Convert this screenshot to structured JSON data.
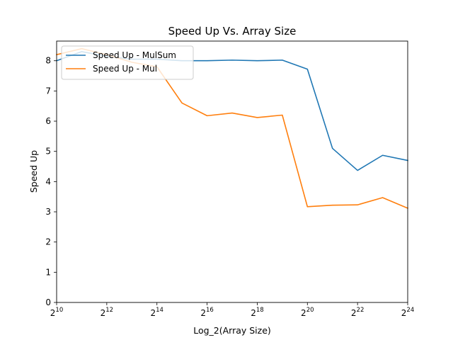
{
  "chart_data": {
    "type": "line",
    "title": "Speed Up Vs. Array Size",
    "xlabel": "Log_2(Array Size)",
    "ylabel": "Speed Up",
    "x_scale": "log2",
    "x": [
      10,
      11,
      12,
      13,
      14,
      15,
      16,
      17,
      18,
      19,
      20,
      21,
      22,
      23,
      24
    ],
    "xlim": [
      10,
      24
    ],
    "ylim": [
      0,
      8.65
    ],
    "x_ticks": [
      {
        "value": 10,
        "base": "2",
        "exp": "10"
      },
      {
        "value": 12,
        "base": "2",
        "exp": "12"
      },
      {
        "value": 14,
        "base": "2",
        "exp": "14"
      },
      {
        "value": 16,
        "base": "2",
        "exp": "16"
      },
      {
        "value": 18,
        "base": "2",
        "exp": "18"
      },
      {
        "value": 20,
        "base": "2",
        "exp": "20"
      },
      {
        "value": 22,
        "base": "2",
        "exp": "22"
      },
      {
        "value": 24,
        "base": "2",
        "exp": "24"
      }
    ],
    "y_ticks": [
      "0",
      "1",
      "2",
      "3",
      "4",
      "5",
      "6",
      "7",
      "8"
    ],
    "grid": false,
    "legend_position": "top-left",
    "series": [
      {
        "name": "Speed Up - MulSum",
        "color": "#1f77b4",
        "values": [
          8.0,
          8.3,
          8.15,
          8.05,
          8.05,
          8.0,
          8.0,
          8.02,
          8.0,
          8.02,
          7.72,
          5.1,
          4.37,
          4.87,
          4.7
        ]
      },
      {
        "name": "Speed Up - Mul",
        "color": "#ff7f0e",
        "values": [
          8.2,
          8.4,
          8.2,
          7.95,
          7.8,
          6.6,
          6.18,
          6.27,
          6.12,
          6.2,
          3.17,
          3.22,
          3.23,
          3.47,
          3.12
        ]
      }
    ]
  }
}
